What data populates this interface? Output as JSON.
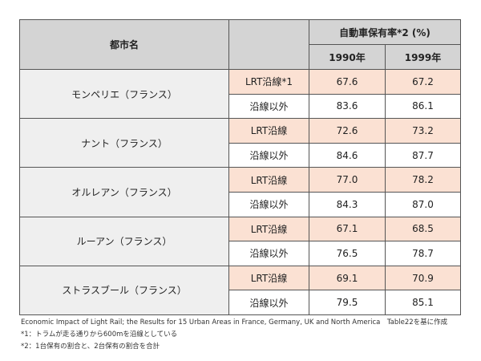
{
  "header": {
    "city": "都市名",
    "rate": "自動車保有率*2 (%)",
    "year1": "1990年",
    "year2": "1999年"
  },
  "rows": [
    {
      "city": "モンペリエ（フランス）",
      "lrt_label": "LRT沿線*1",
      "lrt": [
        "67.6",
        "67.2"
      ],
      "other_label": "沿線以外",
      "other": [
        "83.6",
        "86.1"
      ]
    },
    {
      "city": "ナント（フランス）",
      "lrt_label": "LRT沿線",
      "lrt": [
        "72.6",
        "73.2"
      ],
      "other_label": "沿線以外",
      "other": [
        "84.6",
        "87.7"
      ]
    },
    {
      "city": "オルレアン（フランス）",
      "lrt_label": "LRT沿線",
      "lrt": [
        "77.0",
        "78.2"
      ],
      "other_label": "沿線以外",
      "other": [
        "84.3",
        "87.0"
      ]
    },
    {
      "city": "ルーアン（フランス）",
      "lrt_label": "LRT沿線",
      "lrt": [
        "67.1",
        "68.5"
      ],
      "other_label": "沿線以外",
      "other": [
        "76.5",
        "78.7"
      ]
    },
    {
      "city": "ストラスブール（フランス）",
      "lrt_label": "LRT沿線",
      "lrt": [
        "69.1",
        "70.9"
      ],
      "other_label": "沿線以外",
      "other": [
        "79.5",
        "85.1"
      ]
    }
  ],
  "notes": {
    "source": "Economic Impact of Light Rail; the Results for 15 Urban Areas in France, Germany, UK and North America　Table22を基に作成",
    "note1": "*1：トラムが走る通りから600mを沿線としている",
    "note2": "*2：1台保有の割合と、2台保有の割合を合計"
  },
  "colors": {
    "header_bg": "#d4d4d4",
    "city_bg": "#efefef",
    "lrt_bg": "#fbe1d3"
  }
}
